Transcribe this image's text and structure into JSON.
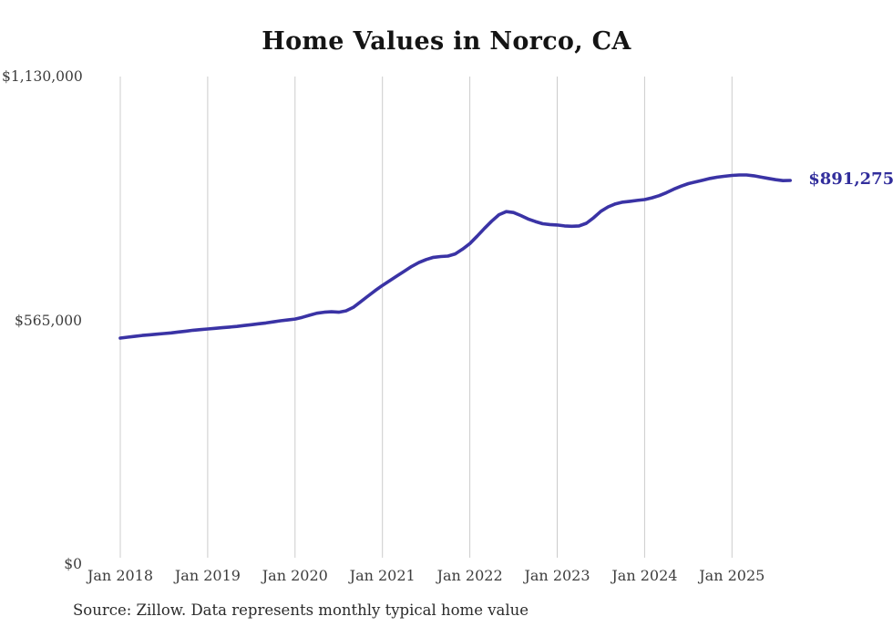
{
  "source_note": "Source: Zillow. Data represents monthly typical home value",
  "chart_data": {
    "type": "line",
    "title": "Home Values in Norco, CA",
    "series_name": "Typical home value (USD)",
    "xlabel": "",
    "ylabel": "",
    "ylim": [
      0,
      1130000
    ],
    "grid": "vertical-only",
    "legend": "none",
    "line_color": "#3a33a5",
    "grid_color": "#cccccc",
    "end_label": "$891,275",
    "end_value": 891275,
    "y_ticks": [
      {
        "label": "$0",
        "value": 0
      },
      {
        "label": "$565,000",
        "value": 565000
      },
      {
        "label": "$1,130,000",
        "value": 1130000
      }
    ],
    "x_ticks": [
      "Jan 2018",
      "Jan 2019",
      "Jan 2020",
      "Jan 2021",
      "Jan 2022",
      "Jan 2023",
      "Jan 2024",
      "Jan 2025"
    ],
    "months": [
      "2018-01",
      "2018-02",
      "2018-03",
      "2018-04",
      "2018-05",
      "2018-06",
      "2018-07",
      "2018-08",
      "2018-09",
      "2018-10",
      "2018-11",
      "2018-12",
      "2019-01",
      "2019-02",
      "2019-03",
      "2019-04",
      "2019-05",
      "2019-06",
      "2019-07",
      "2019-08",
      "2019-09",
      "2019-10",
      "2019-11",
      "2019-12",
      "2020-01",
      "2020-02",
      "2020-03",
      "2020-04",
      "2020-05",
      "2020-06",
      "2020-07",
      "2020-08",
      "2020-09",
      "2020-10",
      "2020-11",
      "2020-12",
      "2021-01",
      "2021-02",
      "2021-03",
      "2021-04",
      "2021-05",
      "2021-06",
      "2021-07",
      "2021-08",
      "2021-09",
      "2021-10",
      "2021-11",
      "2021-12",
      "2022-01",
      "2022-02",
      "2022-03",
      "2022-04",
      "2022-05",
      "2022-06",
      "2022-07",
      "2022-08",
      "2022-09",
      "2022-10",
      "2022-11",
      "2022-12",
      "2023-01",
      "2023-02",
      "2023-03",
      "2023-04",
      "2023-05",
      "2023-06",
      "2023-07",
      "2023-08",
      "2023-09",
      "2023-10",
      "2023-11",
      "2023-12",
      "2024-01",
      "2024-02",
      "2024-03",
      "2024-04",
      "2024-05",
      "2024-06",
      "2024-07",
      "2024-08",
      "2024-09",
      "2024-10",
      "2024-11",
      "2024-12",
      "2025-01",
      "2025-02",
      "2025-03",
      "2025-04",
      "2025-05",
      "2025-06",
      "2025-07",
      "2025-08",
      "2025-09"
    ],
    "values": [
      526000,
      528000,
      530000,
      532000,
      533500,
      535000,
      536500,
      538000,
      540000,
      542000,
      544000,
      545500,
      547000,
      548500,
      550000,
      551500,
      553000,
      555000,
      557000,
      559000,
      561000,
      563500,
      566000,
      568000,
      570000,
      574000,
      579000,
      583500,
      586000,
      587000,
      586000,
      589000,
      597000,
      610000,
      623000,
      636000,
      648000,
      659000,
      670000,
      681000,
      692000,
      701000,
      708000,
      713000,
      715000,
      716000,
      721000,
      732000,
      745000,
      762000,
      780000,
      797000,
      812000,
      819000,
      817000,
      810000,
      802000,
      796000,
      791000,
      789000,
      788000,
      786000,
      785000,
      786000,
      792000,
      805000,
      820000,
      830000,
      837000,
      841000,
      843000,
      845000,
      847000,
      851000,
      856000,
      863000,
      871000,
      878000,
      884000,
      888000,
      892000,
      896000,
      899000,
      901000,
      903000,
      904000,
      904000,
      902000,
      899000,
      896000,
      893000,
      891000,
      891275
    ]
  }
}
